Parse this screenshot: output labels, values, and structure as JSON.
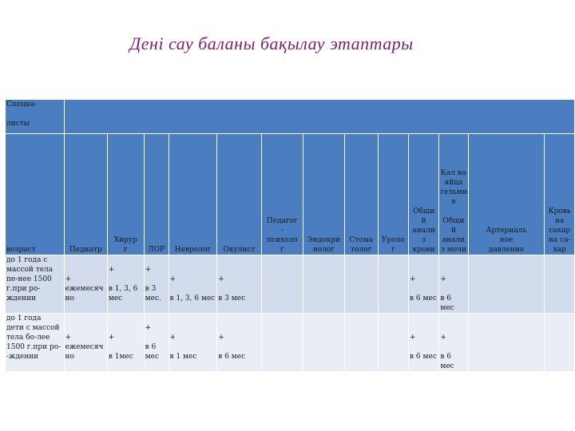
{
  "title": "Дені сау баланы бақылау  этаптары",
  "table": {
    "specialists_label": "Специа-\n\nлисты",
    "age_label": "возраст",
    "headers": [
      "Педиатр",
      "Хирур\nг",
      "ЛОР",
      "Невролог",
      "Окулист",
      "Педагог\n-\nпсихоло\nг",
      "Эндокри\nнолог",
      "Стома\nтолог",
      "Уроло\nг",
      "Общи\nй\nанали\nз\nкрови",
      "Кал на\nяйца\nгельминто\nв\n\nОбщи\nй\nанали\nз мочи",
      "Артериаль\nное\nдавление",
      "Кровь\nна\nсахар\nна са-\nхар"
    ],
    "rows": [
      {
        "age": "до 1 года с\nмассой тела\nпе-нее 1500\nг.при ро-\nждении",
        "cells": [
          "\n\n+\nежемесяч\nно",
          "\n+\n\nв 1, 3, 6\nмес",
          "\n+\n\nв 3\nмес.",
          "\n\n+\n\nв 1, 3, 6 мес",
          "\n\n+\n\nв 3 мес",
          "",
          "",
          "",
          "",
          "\n\n+\n\nв 6 мес",
          "\n\n+\n\nв 6 мес",
          "",
          ""
        ]
      },
      {
        "age": "до 1 года\nдети с массой\nтела бо-лее\n1500 г.при ро-\n-ждении",
        "cells": [
          "\n\n+\nежемесяч\nно",
          "\n\n+\n\nв 1мес",
          "\n+\n\nв 6\nмес",
          "\n\n+\n\nв 1 мес",
          "\n\n+\n\nв 6 мес",
          "",
          "",
          "",
          "",
          "\n\n+\n\nв 6 мес",
          "\n\n+\n\nв 6 мес",
          "",
          ""
        ]
      }
    ]
  }
}
